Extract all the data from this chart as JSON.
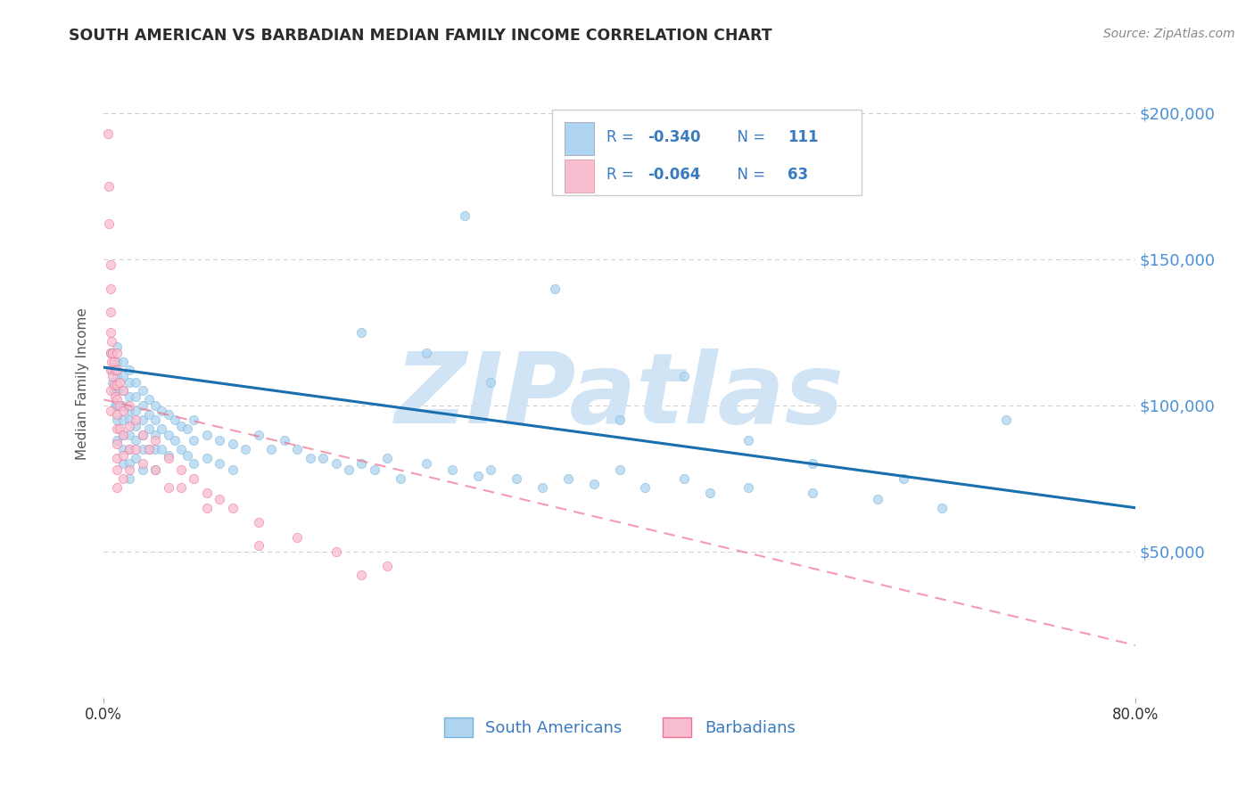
{
  "title": "SOUTH AMERICAN VS BARBADIAN MEDIAN FAMILY INCOME CORRELATION CHART",
  "source_text": "Source: ZipAtlas.com",
  "ylabel": "Median Family Income",
  "xlim": [
    0.0,
    0.8
  ],
  "ylim": [
    0,
    215000
  ],
  "background_color": "#ffffff",
  "grid_color": "#cccccc",
  "title_color": "#2c2c2c",
  "axis_label_color": "#555555",
  "right_ytick_color": "#4a90d9",
  "right_ytick_labels": [
    "$200,000",
    "$150,000",
    "$100,000",
    "$50,000"
  ],
  "right_ytick_positions": [
    200000,
    150000,
    100000,
    50000
  ],
  "watermark_text": "ZIPatlas",
  "watermark_color": "#d0e4f5",
  "watermark_fontsize": 80,
  "legend_text_color": "#3a7bbf",
  "series": [
    {
      "name": "South Americans",
      "R_label": "-0.340",
      "N_label": "111",
      "face_color": "#aed4ef",
      "edge_color": "#7ab3d9",
      "line_color": "#1a6faf",
      "line_style": "solid",
      "line_x": [
        0.0,
        0.8
      ],
      "line_y": [
        113000,
        65000
      ],
      "x": [
        0.005,
        0.006,
        0.007,
        0.008,
        0.009,
        0.01,
        0.01,
        0.01,
        0.01,
        0.01,
        0.01,
        0.01,
        0.015,
        0.015,
        0.015,
        0.015,
        0.015,
        0.015,
        0.015,
        0.015,
        0.02,
        0.02,
        0.02,
        0.02,
        0.02,
        0.02,
        0.02,
        0.02,
        0.02,
        0.025,
        0.025,
        0.025,
        0.025,
        0.025,
        0.025,
        0.03,
        0.03,
        0.03,
        0.03,
        0.03,
        0.03,
        0.035,
        0.035,
        0.035,
        0.035,
        0.04,
        0.04,
        0.04,
        0.04,
        0.04,
        0.045,
        0.045,
        0.045,
        0.05,
        0.05,
        0.05,
        0.055,
        0.055,
        0.06,
        0.06,
        0.065,
        0.065,
        0.07,
        0.07,
        0.07,
        0.08,
        0.08,
        0.09,
        0.09,
        0.1,
        0.1,
        0.11,
        0.12,
        0.13,
        0.14,
        0.15,
        0.16,
        0.17,
        0.18,
        0.19,
        0.2,
        0.21,
        0.22,
        0.23,
        0.25,
        0.27,
        0.29,
        0.3,
        0.32,
        0.34,
        0.36,
        0.38,
        0.4,
        0.42,
        0.45,
        0.47,
        0.5,
        0.55,
        0.6,
        0.65,
        0.28,
        0.35,
        0.45,
        0.2,
        0.25,
        0.3,
        0.4,
        0.5,
        0.55,
        0.62,
        0.7
      ],
      "y": [
        118000,
        112000,
        108000,
        105000,
        100000,
        120000,
        115000,
        110000,
        105000,
        100000,
        95000,
        88000,
        115000,
        110000,
        105000,
        100000,
        95000,
        90000,
        85000,
        80000,
        112000,
        108000,
        103000,
        98000,
        95000,
        90000,
        85000,
        80000,
        75000,
        108000,
        103000,
        98000,
        93000,
        88000,
        82000,
        105000,
        100000,
        95000,
        90000,
        85000,
        78000,
        102000,
        97000,
        92000,
        85000,
        100000,
        95000,
        90000,
        85000,
        78000,
        98000,
        92000,
        85000,
        97000,
        90000,
        83000,
        95000,
        88000,
        93000,
        85000,
        92000,
        83000,
        95000,
        88000,
        80000,
        90000,
        82000,
        88000,
        80000,
        87000,
        78000,
        85000,
        90000,
        85000,
        88000,
        85000,
        82000,
        82000,
        80000,
        78000,
        80000,
        78000,
        82000,
        75000,
        80000,
        78000,
        76000,
        78000,
        75000,
        72000,
        75000,
        73000,
        78000,
        72000,
        75000,
        70000,
        72000,
        70000,
        68000,
        65000,
        165000,
        140000,
        110000,
        125000,
        118000,
        108000,
        95000,
        88000,
        80000,
        75000,
        95000
      ]
    },
    {
      "name": "Barbadians",
      "R_label": "-0.064",
      "N_label": "63",
      "face_color": "#f9bdd0",
      "edge_color": "#f07090",
      "line_color": "#f07090",
      "line_style": "dashed",
      "line_x": [
        0.0,
        0.22
      ],
      "line_y": [
        102000,
        80000
      ],
      "dashed_line_x": [
        0.0,
        0.8
      ],
      "dashed_line_y": [
        102000,
        18000
      ],
      "x": [
        0.003,
        0.004,
        0.004,
        0.005,
        0.005,
        0.005,
        0.005,
        0.005,
        0.005,
        0.005,
        0.005,
        0.006,
        0.006,
        0.007,
        0.007,
        0.008,
        0.008,
        0.009,
        0.009,
        0.01,
        0.01,
        0.01,
        0.01,
        0.01,
        0.01,
        0.01,
        0.01,
        0.01,
        0.01,
        0.012,
        0.012,
        0.012,
        0.015,
        0.015,
        0.015,
        0.015,
        0.015,
        0.02,
        0.02,
        0.02,
        0.02,
        0.025,
        0.025,
        0.03,
        0.03,
        0.035,
        0.04,
        0.04,
        0.05,
        0.05,
        0.06,
        0.07,
        0.08,
        0.09,
        0.1,
        0.12,
        0.15,
        0.18,
        0.22,
        0.06,
        0.08,
        0.12,
        0.2
      ],
      "y": [
        193000,
        175000,
        162000,
        148000,
        140000,
        132000,
        125000,
        118000,
        112000,
        105000,
        98000,
        122000,
        115000,
        118000,
        110000,
        115000,
        107000,
        112000,
        103000,
        118000,
        112000,
        107000,
        102000,
        97000,
        92000,
        87000,
        82000,
        78000,
        72000,
        108000,
        100000,
        92000,
        105000,
        98000,
        90000,
        83000,
        75000,
        100000,
        93000,
        85000,
        78000,
        95000,
        85000,
        90000,
        80000,
        85000,
        88000,
        78000,
        82000,
        72000,
        78000,
        75000,
        70000,
        68000,
        65000,
        60000,
        55000,
        50000,
        45000,
        72000,
        65000,
        52000,
        42000
      ]
    }
  ]
}
